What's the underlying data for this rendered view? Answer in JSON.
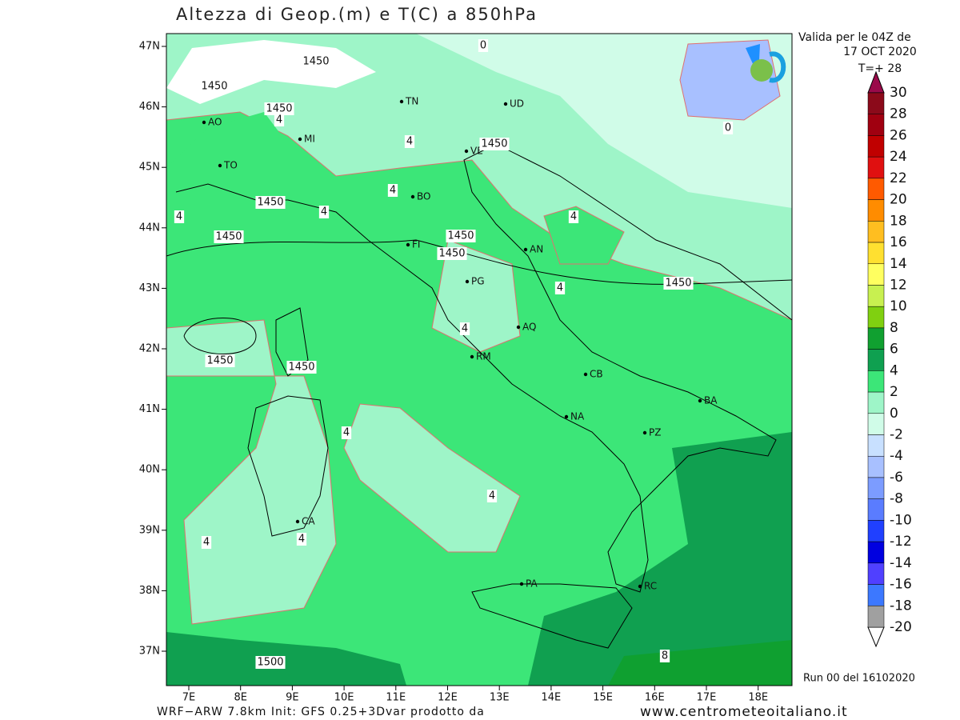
{
  "header": {
    "title": "Altezza di Geop.(m) e T(C) a 850hPa",
    "valid": "Valida per le 04Z de",
    "date": "17 OCT 2020",
    "step": "T=+ 28"
  },
  "map": {
    "lat_labels": [
      "47N",
      "46N",
      "45N",
      "44N",
      "43N",
      "42N",
      "41N",
      "40N",
      "39N",
      "38N",
      "37N"
    ],
    "lon_labels": [
      "7E",
      "8E",
      "9E",
      "10E",
      "11E",
      "12E",
      "13E",
      "14E",
      "15E",
      "16E",
      "17E",
      "18E"
    ],
    "cities": [
      "AO",
      "TO",
      "MI",
      "TN",
      "UD",
      "VE",
      "BO",
      "FI",
      "AN",
      "PG",
      "AQ",
      "RM",
      "CB",
      "BA",
      "NA",
      "PZ",
      "CA",
      "PA",
      "RC"
    ],
    "contour_labels": [
      "1450",
      "1450",
      "1450",
      "1450",
      "1450",
      "1450",
      "1450",
      "1450",
      "1450",
      "1450",
      "1450",
      "4",
      "4",
      "4",
      "4",
      "4",
      "4",
      "4",
      "4",
      "4",
      "4",
      "4",
      "4",
      "0",
      "0",
      "8",
      "1500"
    ]
  },
  "colorbar": {
    "levels": [
      30,
      28,
      26,
      24,
      22,
      20,
      18,
      16,
      14,
      12,
      10,
      8,
      6,
      4,
      2,
      0,
      -2,
      -4,
      -6,
      -8,
      -10,
      -12,
      -14,
      -16,
      -18,
      -20
    ]
  },
  "footer": {
    "run": "Run 00 del 16102020",
    "credit": "WRF−ARW 7.8km Init: GFS 0.25+3Dvar prodotto da",
    "site": "www.centrometeoitaliano.it"
  }
}
